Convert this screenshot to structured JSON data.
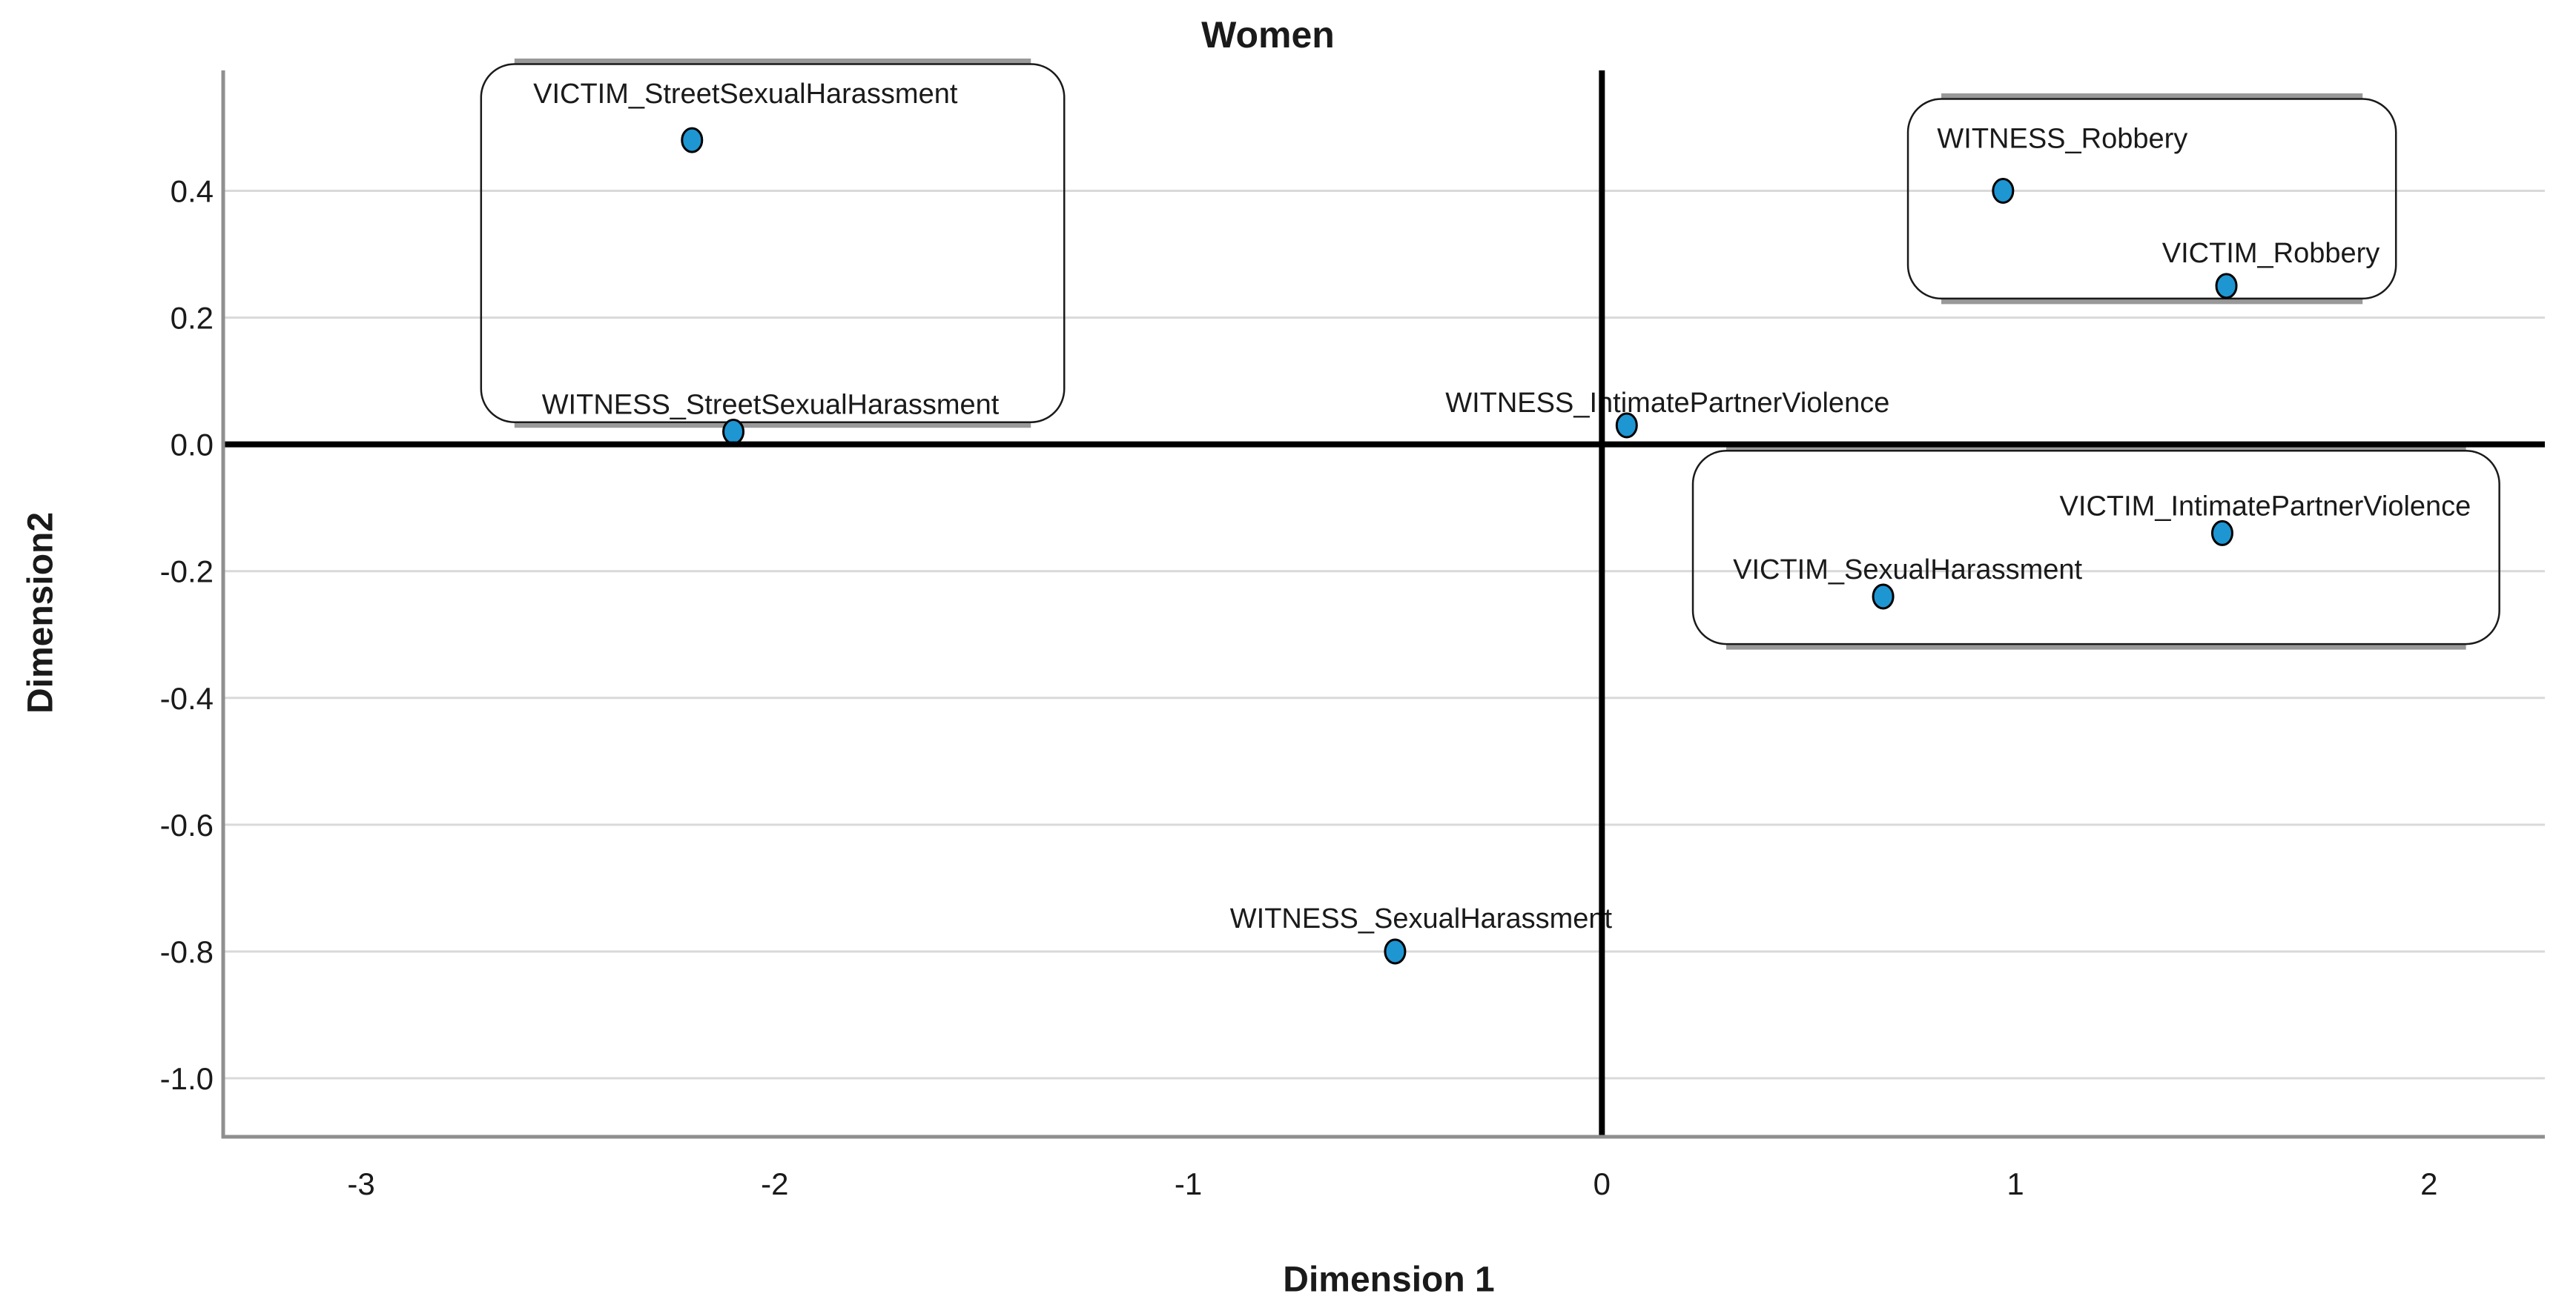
{
  "page": {
    "background": "#ffffff"
  },
  "chart_data": {
    "type": "scatter",
    "title": "Women",
    "xlabel": "Dimension 1",
    "ylabel": "Dimension2",
    "xlim": [
      -3.33,
      2.28
    ],
    "ylim": [
      -1.09,
      0.59
    ],
    "x_ticks": [
      "-3",
      "-2",
      "-1",
      "0",
      "1",
      "2"
    ],
    "y_ticks": [
      "0.4",
      "0.2",
      "0.0",
      "-0.2",
      "-0.4",
      "-0.6",
      "-0.8",
      "-1.0"
    ],
    "grid": "horizontal-only",
    "legend": "none",
    "zero_reference_lines": {
      "x": 0,
      "y": 0
    },
    "marker": {
      "shape": "circle",
      "fill": "#1E96D2",
      "stroke": "#000000"
    },
    "colors": {
      "gridline": "#d9d9d9",
      "frame": "#8f8f8f",
      "zero_axis": "#000000",
      "box_border": "#1a1a1a",
      "box_shadow": "#999999",
      "text": "#1a1a1a"
    },
    "series": [
      {
        "name": "categories",
        "points": [
          {
            "label": "VICTIM_StreetSexualHarassment",
            "x": -2.2,
            "y": 0.48,
            "label_dx": 72,
            "label_dy": -50
          },
          {
            "label": "WITNESS_StreetSexualHarassment",
            "x": -2.1,
            "y": 0.02,
            "label_dx": 50,
            "label_dy": -24
          },
          {
            "label": "WITNESS_Robbery",
            "x": 0.97,
            "y": 0.4,
            "label_dx": 80,
            "label_dy": -58
          },
          {
            "label": "VICTIM_Robbery",
            "x": 1.51,
            "y": 0.25,
            "label_dx": 60,
            "label_dy": -32
          },
          {
            "label": "WITNESS_IntimatePartnerViolence",
            "x": 0.06,
            "y": 0.03,
            "label_dx": 55,
            "label_dy": -18
          },
          {
            "label": "VICTIM_IntimatePartnerViolence",
            "x": 1.5,
            "y": -0.14,
            "label_dx": 58,
            "label_dy": -24
          },
          {
            "label": "VICTIM_SexualHarassment",
            "x": 0.68,
            "y": -0.24,
            "label_dx": 33,
            "label_dy": -24
          },
          {
            "label": "WITNESS_SexualHarassment",
            "x": -0.5,
            "y": -0.8,
            "label_dx": 35,
            "label_dy": -32
          }
        ]
      }
    ],
    "annotation_boxes": [
      {
        "name": "street-sexual-harassment-group",
        "x1": -2.71,
        "x2": -1.3,
        "y1": 0.6,
        "y2": 0.035
      },
      {
        "name": "robbery-group",
        "x1": 0.74,
        "x2": 1.92,
        "y1": 0.545,
        "y2": 0.23
      },
      {
        "name": "victim-ipv-sh-group",
        "x1": 0.22,
        "x2": 2.17,
        "y1": -0.01,
        "y2": -0.315
      }
    ]
  }
}
